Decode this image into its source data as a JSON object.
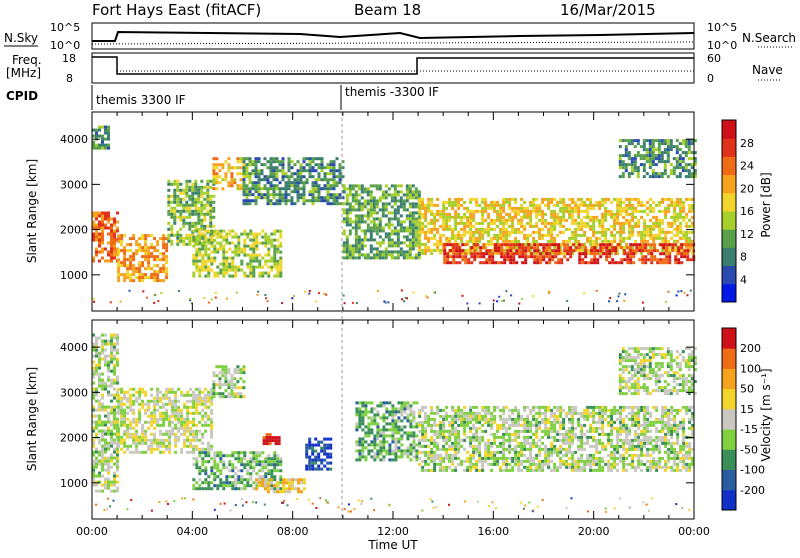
{
  "header": {
    "station": "Fort Hays East (fitACF)",
    "beam": "Beam 18",
    "date": "16/Mar/2015"
  },
  "top_panels": {
    "nsky_label": "N.Sky",
    "nsearch_label": "N.Search",
    "nsky_ticks": [
      "10^5",
      "10^0"
    ],
    "freq_label_1": "Freq.",
    "freq_label_2": "[MHz]",
    "freq_ticks": [
      "18",
      "8"
    ],
    "nave_label": "Nave",
    "nave_ticks": [
      "60",
      "0"
    ],
    "cpid_label": "CPID",
    "cpid_segments": [
      "themis 3300 IF",
      "themis -3300 IF"
    ]
  },
  "chart_data": [
    {
      "type": "heatmap",
      "name": "power",
      "ylabel": "Slant Range [km]",
      "y_ticks": [
        1000,
        2000,
        3000,
        4000
      ],
      "ylim": [
        200,
        4600
      ],
      "xlim": [
        0,
        24
      ],
      "colorbar": {
        "label": "Power [dB]",
        "ticks": [
          "4",
          "8",
          "12",
          "16",
          "20",
          "24",
          "28"
        ],
        "colors": [
          "#0019e6",
          "#2a4ab0",
          "#3a7e6f",
          "#58a04a",
          "#a6cf2a",
          "#f2d52b",
          "#f7a21c",
          "#ef6b15",
          "#e0321b",
          "#d01018"
        ]
      },
      "regions": [
        {
          "x0": 0.0,
          "x1": 0.6,
          "y0": 3800,
          "y1": 4300,
          "level": 0.3
        },
        {
          "x0": 0.0,
          "x1": 1.0,
          "y0": 1300,
          "y1": 2400,
          "level": 0.75
        },
        {
          "x0": 1.0,
          "x1": 3.0,
          "y0": 900,
          "y1": 1900,
          "level": 0.65
        },
        {
          "x0": 3.0,
          "x1": 4.8,
          "y0": 1700,
          "y1": 3100,
          "level": 0.4
        },
        {
          "x0": 4.8,
          "x1": 6.0,
          "y0": 2900,
          "y1": 3600,
          "level": 0.6
        },
        {
          "x0": 4.0,
          "x1": 7.5,
          "y0": 1000,
          "y1": 2000,
          "level": 0.45
        },
        {
          "x0": 6.0,
          "x1": 10.0,
          "y0": 2600,
          "y1": 3600,
          "level": 0.3
        },
        {
          "x0": 10.0,
          "x1": 13.0,
          "y0": 1400,
          "y1": 3000,
          "level": 0.35
        },
        {
          "x0": 13.0,
          "x1": 24.0,
          "y0": 1500,
          "y1": 2700,
          "level": 0.55
        },
        {
          "x0": 14.0,
          "x1": 24.0,
          "y0": 1300,
          "y1": 1700,
          "level": 0.85
        },
        {
          "x0": 21.0,
          "x1": 24.0,
          "y0": 3200,
          "y1": 4000,
          "level": 0.3
        }
      ]
    },
    {
      "type": "heatmap",
      "name": "velocity",
      "ylabel": "Slant Range [km]",
      "y_ticks": [
        1000,
        2000,
        3000,
        4000
      ],
      "ylim": [
        200,
        4600
      ],
      "xlim": [
        0,
        24
      ],
      "xlabel": "Time UT",
      "x_ticks": [
        "00:00",
        "04:00",
        "08:00",
        "12:00",
        "16:00",
        "20:00",
        "00:00"
      ],
      "colorbar": {
        "label": "Velocity [m s⁻¹]",
        "ticks": [
          "200",
          "100",
          "50",
          "15",
          "-15",
          "-50",
          "-100",
          "-200"
        ],
        "colors": [
          "#1030c8",
          "#2a5ca0",
          "#3a8f58",
          "#7fd040",
          "#c8c8c0",
          "#f2d52b",
          "#f7a21c",
          "#ef6b15",
          "#d01018"
        ]
      },
      "regions": [
        {
          "x0": 0.0,
          "x1": 1.0,
          "y0": 800,
          "y1": 4300,
          "level": 0.45
        },
        {
          "x0": 1.0,
          "x1": 4.8,
          "y0": 1700,
          "y1": 3100,
          "level": 0.5
        },
        {
          "x0": 4.8,
          "x1": 6.0,
          "y0": 2900,
          "y1": 3600,
          "level": 0.45
        },
        {
          "x0": 4.0,
          "x1": 7.5,
          "y0": 900,
          "y1": 1700,
          "level": 0.35
        },
        {
          "x0": 6.5,
          "x1": 8.5,
          "y0": 800,
          "y1": 1100,
          "level": 0.62
        },
        {
          "x0": 8.5,
          "x1": 9.5,
          "y0": 1300,
          "y1": 2000,
          "level": 0.1
        },
        {
          "x0": 6.8,
          "x1": 7.5,
          "y0": 1900,
          "y1": 2100,
          "level": 0.95
        },
        {
          "x0": 10.5,
          "x1": 13.0,
          "y0": 1500,
          "y1": 2800,
          "level": 0.35
        },
        {
          "x0": 13.0,
          "x1": 24.0,
          "y0": 1300,
          "y1": 2700,
          "level": 0.45
        },
        {
          "x0": 21.0,
          "x1": 24.0,
          "y0": 3000,
          "y1": 4000,
          "level": 0.45
        }
      ]
    }
  ]
}
